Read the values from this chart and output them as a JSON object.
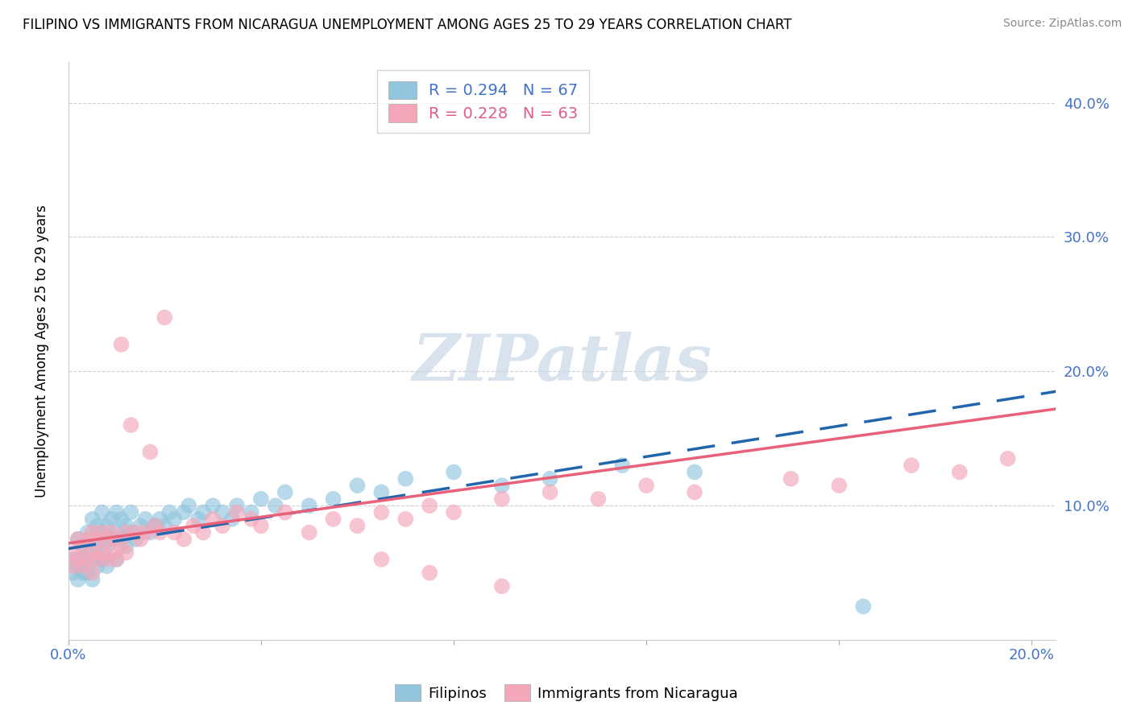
{
  "title": "FILIPINO VS IMMIGRANTS FROM NICARAGUA UNEMPLOYMENT AMONG AGES 25 TO 29 YEARS CORRELATION CHART",
  "source": "Source: ZipAtlas.com",
  "ylabel": "Unemployment Among Ages 25 to 29 years",
  "xlim": [
    0.0,
    0.205
  ],
  "ylim": [
    0.0,
    0.43
  ],
  "x_ticks": [
    0.0,
    0.04,
    0.08,
    0.12,
    0.16,
    0.2
  ],
  "x_tick_labels": [
    "0.0%",
    "",
    "",
    "",
    "",
    "20.0%"
  ],
  "y_ticks": [
    0.0,
    0.1,
    0.2,
    0.3,
    0.4
  ],
  "y_tick_labels": [
    "",
    "10.0%",
    "20.0%",
    "30.0%",
    "40.0%"
  ],
  "filipino_color": "#92c5de",
  "nicaragua_color": "#f4a7b9",
  "filipino_line_color": "#2166ac",
  "nicaragua_line_color": "#e8607a",
  "legend_filipino_label": "R = 0.294   N = 67",
  "legend_nicaragua_label": "R = 0.228   N = 63",
  "legend_x_label": "Filipinos",
  "legend_x2_label": "Immigrants from Nicaragua",
  "watermark": "ZIPatlas",
  "fil_line_x0": 0.0,
  "fil_line_y0": 0.068,
  "fil_line_x1": 0.205,
  "fil_line_y1": 0.185,
  "nic_line_x0": 0.0,
  "nic_line_y0": 0.072,
  "nic_line_x1": 0.205,
  "nic_line_y1": 0.172,
  "fil_scatter_x": [
    0.001,
    0.001,
    0.002,
    0.002,
    0.002,
    0.003,
    0.003,
    0.003,
    0.004,
    0.004,
    0.004,
    0.005,
    0.005,
    0.005,
    0.005,
    0.006,
    0.006,
    0.006,
    0.007,
    0.007,
    0.007,
    0.008,
    0.008,
    0.008,
    0.009,
    0.009,
    0.01,
    0.01,
    0.01,
    0.011,
    0.011,
    0.012,
    0.012,
    0.013,
    0.013,
    0.014,
    0.015,
    0.016,
    0.017,
    0.018,
    0.019,
    0.02,
    0.021,
    0.022,
    0.024,
    0.025,
    0.027,
    0.028,
    0.03,
    0.032,
    0.034,
    0.035,
    0.038,
    0.04,
    0.043,
    0.045,
    0.05,
    0.055,
    0.06,
    0.065,
    0.07,
    0.08,
    0.09,
    0.1,
    0.115,
    0.13,
    0.165
  ],
  "fil_scatter_y": [
    0.06,
    0.05,
    0.075,
    0.055,
    0.045,
    0.07,
    0.06,
    0.05,
    0.08,
    0.065,
    0.05,
    0.09,
    0.075,
    0.06,
    0.045,
    0.085,
    0.07,
    0.055,
    0.095,
    0.08,
    0.06,
    0.085,
    0.07,
    0.055,
    0.09,
    0.075,
    0.095,
    0.08,
    0.06,
    0.09,
    0.075,
    0.085,
    0.07,
    0.095,
    0.08,
    0.075,
    0.085,
    0.09,
    0.08,
    0.085,
    0.09,
    0.085,
    0.095,
    0.09,
    0.095,
    0.1,
    0.09,
    0.095,
    0.1,
    0.095,
    0.09,
    0.1,
    0.095,
    0.105,
    0.1,
    0.11,
    0.1,
    0.105,
    0.115,
    0.11,
    0.12,
    0.125,
    0.115,
    0.12,
    0.13,
    0.125,
    0.025
  ],
  "nic_scatter_x": [
    0.001,
    0.001,
    0.002,
    0.002,
    0.003,
    0.003,
    0.004,
    0.004,
    0.005,
    0.005,
    0.005,
    0.006,
    0.006,
    0.007,
    0.007,
    0.008,
    0.008,
    0.009,
    0.009,
    0.01,
    0.01,
    0.011,
    0.011,
    0.012,
    0.012,
    0.013,
    0.014,
    0.015,
    0.016,
    0.017,
    0.018,
    0.019,
    0.02,
    0.022,
    0.024,
    0.026,
    0.028,
    0.03,
    0.032,
    0.035,
    0.038,
    0.04,
    0.045,
    0.05,
    0.055,
    0.06,
    0.065,
    0.07,
    0.075,
    0.08,
    0.09,
    0.1,
    0.11,
    0.12,
    0.13,
    0.15,
    0.16,
    0.175,
    0.185,
    0.195,
    0.065,
    0.075,
    0.09
  ],
  "nic_scatter_y": [
    0.065,
    0.055,
    0.075,
    0.06,
    0.07,
    0.055,
    0.075,
    0.06,
    0.08,
    0.065,
    0.05,
    0.075,
    0.06,
    0.08,
    0.065,
    0.075,
    0.06,
    0.08,
    0.065,
    0.075,
    0.06,
    0.22,
    0.07,
    0.08,
    0.065,
    0.16,
    0.08,
    0.075,
    0.08,
    0.14,
    0.085,
    0.08,
    0.24,
    0.08,
    0.075,
    0.085,
    0.08,
    0.09,
    0.085,
    0.095,
    0.09,
    0.085,
    0.095,
    0.08,
    0.09,
    0.085,
    0.095,
    0.09,
    0.1,
    0.095,
    0.105,
    0.11,
    0.105,
    0.115,
    0.11,
    0.12,
    0.115,
    0.13,
    0.125,
    0.135,
    0.06,
    0.05,
    0.04
  ]
}
